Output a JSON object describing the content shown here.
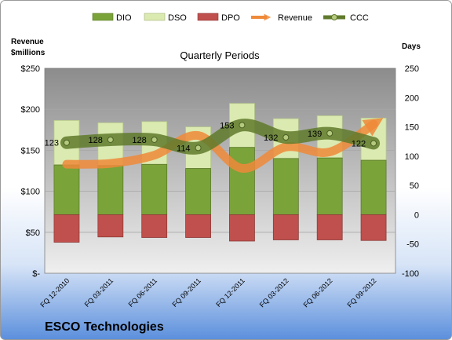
{
  "company": "ESCO Technologies",
  "chart_data": {
    "type": "bar",
    "title": "Quarterly Periods",
    "ylabel_left": "Revenue $millions",
    "ylabel_right": "Days",
    "categories": [
      "FQ 12-2010",
      "FQ 03-2011",
      "FQ 06-2011",
      "FQ 09-2011",
      "FQ 12-2011",
      "FQ 03-2012",
      "FQ 06-2012",
      "FQ 09-2012"
    ],
    "left_axis": {
      "ticks": [
        "$-",
        "$50",
        "$100",
        "$150",
        "$200",
        "$250"
      ],
      "range": [
        0,
        250
      ]
    },
    "right_axis": {
      "ticks": [
        "-100",
        "-50",
        "0",
        "50",
        "100",
        "150",
        "200",
        "250"
      ],
      "range": [
        -100,
        250
      ]
    },
    "series": [
      {
        "name": "DIO",
        "kind": "stacked-bar",
        "axis": "days",
        "values": [
          85,
          84,
          86,
          79,
          115,
          96,
          97,
          93
        ],
        "color": "#7aa33a"
      },
      {
        "name": "DSO",
        "kind": "stacked-bar",
        "axis": "days",
        "values": [
          76,
          73,
          73,
          71,
          75,
          68,
          72,
          72
        ],
        "color": "#dbeab0"
      },
      {
        "name": "DPO",
        "kind": "bar",
        "axis": "days",
        "values": [
          -47,
          -38,
          -39,
          -39,
          -45,
          -43,
          -43,
          -44
        ],
        "color": "#c0504d"
      },
      {
        "name": "Revenue",
        "kind": "line",
        "axis": "millions",
        "values": [
          133,
          134,
          144,
          168,
          128,
          154,
          148,
          182
        ],
        "color": "#ef8a3a"
      },
      {
        "name": "CCC",
        "kind": "line",
        "axis": "days",
        "values": [
          123,
          128,
          128,
          114,
          153,
          132,
          139,
          122
        ],
        "labels": [
          "123",
          "128",
          "128",
          "114",
          "153",
          "132",
          "139",
          "122"
        ],
        "color": "#5f7a2c"
      }
    ],
    "grid": true,
    "legend": "top"
  }
}
